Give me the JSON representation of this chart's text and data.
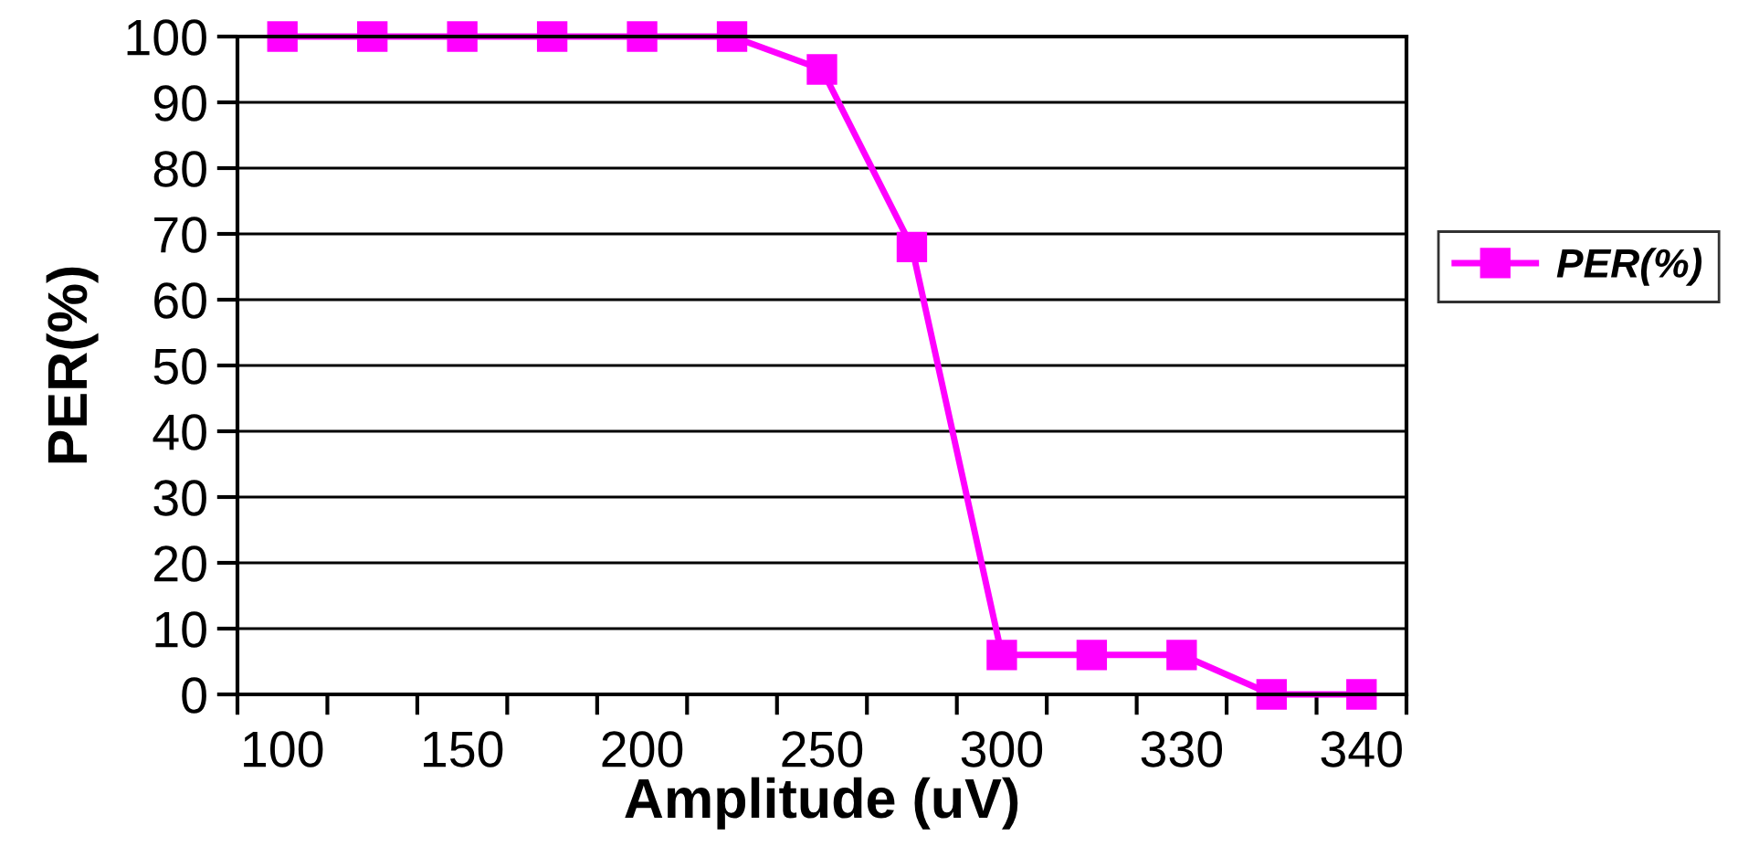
{
  "chart_data": {
    "type": "line",
    "xlabel": "Amplitude (uV)",
    "ylabel": "PER(%)",
    "categories": [
      "100",
      null,
      "150",
      null,
      "200",
      null,
      "250",
      null,
      "300",
      null,
      "330",
      null,
      "340"
    ],
    "series": [
      {
        "name": "PER(%)",
        "color": "#ff00ff",
        "values": [
          100,
          100,
          100,
          100,
          100,
          100,
          95,
          68,
          6,
          6,
          6,
          0,
          0
        ]
      }
    ],
    "ylim": [
      0,
      100
    ],
    "yticks": [
      0,
      10,
      20,
      30,
      40,
      50,
      60,
      70,
      80,
      90,
      100
    ],
    "grid": "y",
    "legend": "right",
    "marker": "square",
    "line_style": "solid"
  }
}
